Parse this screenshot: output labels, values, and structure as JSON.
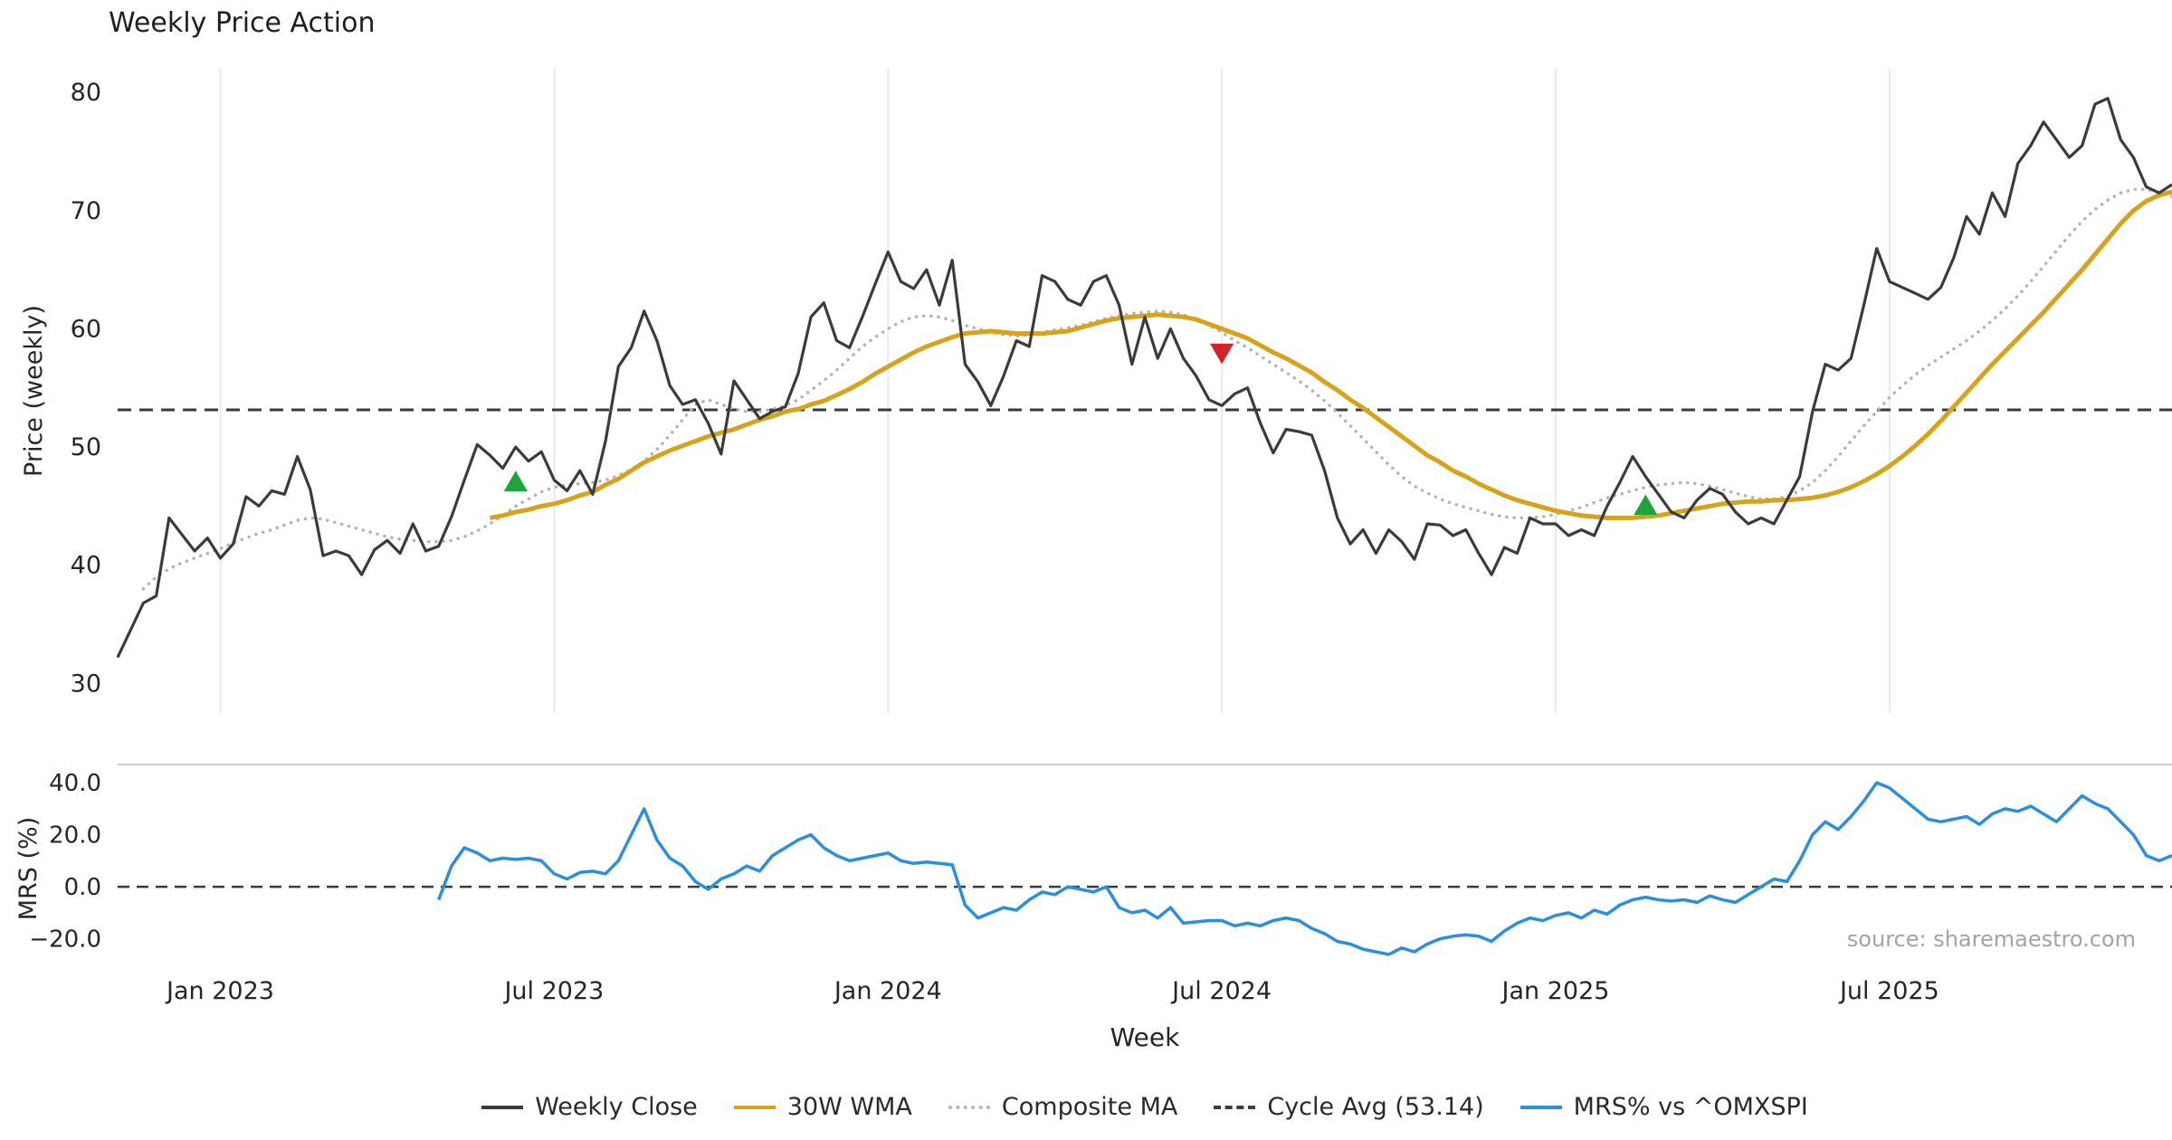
{
  "title": "Weekly Price Action",
  "source_text": "source: sharemaestro.com",
  "colors": {
    "background": "#ffffff",
    "grid": "#eaeaea",
    "tick_label": "#262626",
    "axis_label": "#262626",
    "cycle_line": "#3a3a3a",
    "panel_border": "#cccccc",
    "source_text": "#a3a3a3",
    "buy_signal": "#1da53c",
    "sell_signal": "#d3222a"
  },
  "legend": {
    "items": [
      {
        "label": "Weekly Close",
        "color": "#3b3b3b",
        "style": "solid"
      },
      {
        "label": "30W WMA",
        "color": "#d7a31c",
        "style": "solid"
      },
      {
        "label": "Composite MA",
        "color": "#b5b5b5",
        "style": "dotted"
      },
      {
        "label": "Cycle Avg (53.14)",
        "color": "#3b3b3b",
        "style": "dashed"
      },
      {
        "label": "MRS% vs ^OMXSPI",
        "color": "#2d8edc",
        "style": "solid"
      }
    ]
  },
  "chart_data": [
    {
      "type": "line",
      "title": "Weekly Price Action",
      "xlabel": "Week",
      "ylabel": "Price (weekly)",
      "ylim": [
        27.5,
        82
      ],
      "yticks": [
        80,
        70,
        60,
        50,
        40,
        30
      ],
      "xticks": [
        {
          "index": 8,
          "label": "Jan 2023"
        },
        {
          "index": 34,
          "label": "Jul 2023"
        },
        {
          "index": 60,
          "label": "Jan 2024"
        },
        {
          "index": 86,
          "label": "Jul 2024"
        },
        {
          "index": 112,
          "label": "Jan 2025"
        },
        {
          "index": 138,
          "label": "Jul 2025"
        }
      ],
      "cycle_avg": 53.14,
      "cycle_avg_label": "Cycle Avg (53.14)",
      "signals": [
        {
          "type": "buy",
          "week": 31,
          "price": 47.0
        },
        {
          "type": "sell",
          "week": 86,
          "price": 58.0
        },
        {
          "type": "buy",
          "week": 119,
          "price": 45.0
        }
      ],
      "series": [
        {
          "name": "Weekly Close",
          "color": "#3b3b3b",
          "style": "solid",
          "values": [
            32.2,
            34.5,
            36.8,
            37.4,
            44.0,
            42.6,
            41.2,
            42.3,
            40.6,
            41.8,
            45.8,
            45.0,
            46.3,
            46.0,
            49.2,
            46.4,
            40.8,
            41.2,
            40.8,
            39.2,
            41.3,
            42.1,
            41.0,
            43.5,
            41.2,
            41.6,
            44.1,
            47.2,
            50.2,
            49.3,
            48.2,
            50.0,
            48.8,
            49.6,
            47.2,
            46.3,
            48.0,
            46.0,
            50.5,
            56.8,
            58.4,
            61.5,
            59.0,
            55.2,
            53.6,
            54.0,
            52.0,
            49.4,
            55.6,
            54.0,
            52.4,
            53.0,
            53.4,
            56.2,
            61.0,
            62.2,
            59.0,
            58.4,
            61.0,
            63.8,
            66.5,
            64.0,
            63.4,
            65.0,
            62.0,
            65.8,
            57.0,
            55.5,
            53.5,
            56.0,
            59.0,
            58.5,
            64.5,
            64.0,
            62.5,
            62.0,
            64.0,
            64.5,
            62.0,
            57.0,
            61.0,
            57.5,
            60.0,
            57.5,
            56.0,
            54.0,
            53.5,
            54.5,
            55.0,
            52.0,
            49.5,
            51.5,
            51.3,
            51.0,
            48.0,
            44.0,
            41.8,
            43.0,
            41.0,
            43.0,
            42.0,
            40.5,
            43.5,
            43.4,
            42.5,
            43.0,
            41.0,
            39.2,
            41.5,
            41.0,
            44.0,
            43.5,
            43.5,
            42.5,
            43.0,
            42.5,
            45.0,
            47.0,
            49.2,
            47.5,
            46.0,
            44.5,
            44.0,
            45.5,
            46.5,
            46.0,
            44.5,
            43.5,
            44.0,
            43.5,
            45.5,
            47.5,
            53.0,
            57.0,
            56.5,
            57.5,
            62.0,
            66.8,
            64.0,
            63.5,
            63.0,
            62.5,
            63.5,
            66.0,
            69.5,
            68.0,
            71.5,
            69.5,
            74.0,
            75.5,
            77.5,
            76.0,
            74.5,
            75.5,
            79.0,
            79.5,
            76.0,
            74.5,
            72.0,
            71.5,
            72.2
          ]
        },
        {
          "name": "30W WMA",
          "color": "#d7a31c",
          "style": "solid",
          "values": [
            null,
            null,
            null,
            null,
            null,
            null,
            null,
            null,
            null,
            null,
            null,
            null,
            null,
            null,
            null,
            null,
            null,
            null,
            null,
            null,
            null,
            null,
            null,
            null,
            null,
            null,
            null,
            null,
            null,
            44.0,
            44.2,
            44.5,
            44.7,
            45.0,
            45.2,
            45.5,
            45.9,
            46.2,
            46.8,
            47.3,
            48.0,
            48.7,
            49.2,
            49.7,
            50.1,
            50.5,
            50.9,
            51.2,
            51.5,
            51.9,
            52.3,
            52.6,
            53.0,
            53.2,
            53.6,
            53.9,
            54.4,
            54.9,
            55.5,
            56.2,
            56.8,
            57.4,
            58.0,
            58.5,
            58.9,
            59.3,
            59.6,
            59.7,
            59.8,
            59.7,
            59.6,
            59.6,
            59.6,
            59.7,
            59.8,
            60.1,
            60.4,
            60.7,
            60.9,
            61.0,
            61.1,
            61.2,
            61.1,
            61.0,
            60.8,
            60.4,
            60.0,
            59.6,
            59.2,
            58.6,
            58.0,
            57.5,
            56.9,
            56.3,
            55.5,
            54.8,
            54.0,
            53.3,
            52.5,
            51.7,
            50.9,
            50.1,
            49.3,
            48.7,
            48.0,
            47.5,
            46.9,
            46.4,
            45.9,
            45.5,
            45.2,
            44.9,
            44.6,
            44.4,
            44.2,
            44.1,
            44.0,
            44.0,
            44.0,
            44.1,
            44.2,
            44.4,
            44.6,
            44.8,
            45.0,
            45.2,
            45.3,
            45.4,
            45.4,
            45.5,
            45.5,
            45.6,
            45.7,
            45.9,
            46.2,
            46.6,
            47.1,
            47.7,
            48.4,
            49.2,
            50.1,
            51.1,
            52.2,
            53.4,
            54.6,
            55.8,
            57.0,
            58.1,
            59.2,
            60.3,
            61.4,
            62.6,
            63.8,
            65.0,
            66.3,
            67.6,
            68.9,
            70.0,
            70.8,
            71.3,
            71.6
          ]
        },
        {
          "name": "Composite MA",
          "color": "#b5b5b5",
          "style": "dotted",
          "values": [
            null,
            null,
            38.0,
            39.0,
            39.7,
            40.2,
            40.6,
            41.0,
            41.4,
            41.9,
            42.3,
            42.7,
            43.0,
            43.4,
            43.8,
            44.0,
            43.9,
            43.6,
            43.3,
            43.0,
            42.7,
            42.4,
            42.2,
            42.1,
            42.0,
            42.0,
            42.1,
            42.4,
            42.9,
            43.5,
            44.2,
            45.0,
            45.6,
            46.2,
            46.6,
            46.8,
            46.9,
            47.0,
            47.2,
            47.6,
            48.1,
            48.8,
            49.8,
            51.0,
            52.3,
            53.6,
            54.0,
            53.6,
            53.2,
            53.0,
            53.0,
            53.2,
            53.5,
            54.0,
            54.8,
            55.6,
            56.5,
            57.5,
            58.5,
            59.3,
            60.0,
            60.6,
            61.0,
            61.1,
            61.0,
            60.7,
            60.3,
            60.0,
            59.7,
            59.5,
            59.4,
            59.5,
            59.7,
            59.9,
            60.1,
            60.3,
            60.6,
            60.9,
            61.1,
            61.3,
            61.4,
            61.5,
            61.4,
            61.2,
            60.8,
            60.3,
            59.7,
            59.0,
            58.4,
            57.7,
            57.0,
            56.3,
            55.6,
            54.8,
            53.9,
            52.9,
            51.8,
            50.7,
            49.6,
            48.5,
            47.5,
            46.7,
            46.1,
            45.6,
            45.2,
            44.9,
            44.6,
            44.3,
            44.1,
            44.0,
            44.0,
            44.1,
            44.3,
            44.6,
            44.9,
            45.3,
            45.7,
            46.0,
            46.3,
            46.6,
            46.8,
            46.9,
            47.0,
            46.9,
            46.7,
            46.4,
            46.1,
            45.8,
            45.6,
            45.6,
            45.8,
            46.3,
            47.0,
            48.0,
            49.2,
            50.5,
            51.8,
            53.0,
            54.2,
            55.2,
            56.1,
            56.9,
            57.6,
            58.3,
            59.0,
            59.8,
            60.7,
            61.7,
            62.8,
            64.0,
            65.3,
            66.6,
            67.9,
            69.1,
            70.1,
            70.9,
            71.5,
            71.8,
            71.8,
            71.5,
            71.2
          ]
        }
      ]
    },
    {
      "type": "line",
      "ylabel": "MRS (%)",
      "ylim": [
        -33,
        47
      ],
      "yticks": [
        40,
        20,
        0,
        -20
      ],
      "ytick_labels": [
        "40.0",
        "20.0",
        "0.0",
        "−20.0"
      ],
      "zero_line": 0,
      "series": [
        {
          "name": "MRS% vs ^OMXSPI",
          "color": "#2d8edc",
          "style": "solid",
          "values": [
            null,
            null,
            null,
            null,
            null,
            null,
            null,
            null,
            null,
            null,
            null,
            null,
            null,
            null,
            null,
            null,
            null,
            null,
            null,
            null,
            null,
            null,
            null,
            null,
            null,
            -5,
            8,
            15,
            13,
            10,
            11,
            10.5,
            11,
            10,
            5,
            3,
            5.5,
            6,
            5,
            10,
            20,
            30,
            18,
            11,
            8,
            2,
            -1,
            3,
            5,
            8,
            6,
            12,
            15,
            18,
            20,
            15,
            12,
            10,
            11,
            12,
            13,
            10,
            9,
            9.5,
            9,
            8.5,
            -7,
            -12,
            -10,
            -8,
            -9,
            -5,
            -2,
            -3,
            0,
            -1,
            -2,
            0,
            -8,
            -10,
            -9,
            -12,
            -8,
            -14,
            -13.5,
            -13,
            -13,
            -15,
            -14,
            -15,
            -13,
            -12,
            -13,
            -16,
            -18,
            -21,
            -22,
            -24,
            -25,
            -26,
            -23.5,
            -25,
            -22,
            -20,
            -19,
            -18.5,
            -19,
            -21,
            -17,
            -14,
            -12,
            -13,
            -11,
            -10,
            -12,
            -9,
            -10.5,
            -7,
            -5,
            -4,
            -5,
            -5.5,
            -5,
            -6,
            -3.5,
            -5,
            -6,
            -3,
            0,
            3,
            2,
            10,
            20,
            25,
            22,
            27,
            33,
            40,
            38,
            34,
            30,
            26,
            25,
            26,
            27,
            24,
            28,
            30,
            29,
            31,
            28,
            25,
            30,
            35,
            32,
            30,
            25,
            20,
            12,
            10,
            12
          ]
        }
      ]
    }
  ]
}
